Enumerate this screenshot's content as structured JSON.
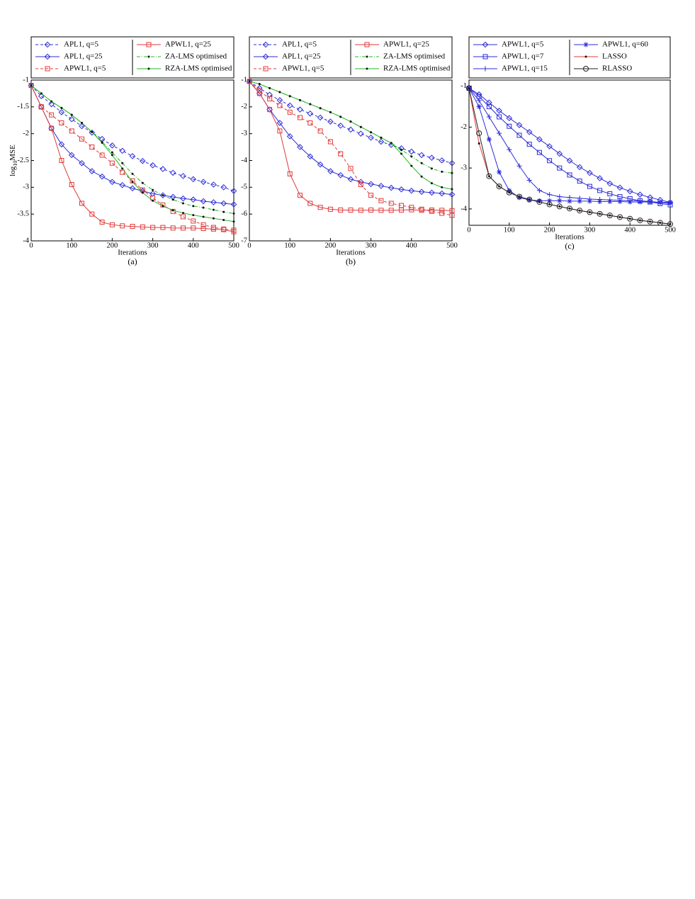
{
  "chart_data": [
    {
      "type": "line",
      "caption": "(a)",
      "x_label": "Iterations",
      "y_label": [
        "log",
        "10",
        "MSE"
      ],
      "x": [
        0,
        25,
        50,
        75,
        100,
        125,
        150,
        175,
        200,
        225,
        250,
        275,
        300,
        325,
        350,
        375,
        400,
        425,
        450,
        475,
        500
      ],
      "xlim": [
        0,
        500
      ],
      "xticks": [
        0,
        100,
        200,
        300,
        400,
        500
      ],
      "ylim": [
        -4,
        -1
      ],
      "yticks": [
        -1,
        -1.5,
        -2,
        -2.5,
        -3,
        -3.5,
        -4
      ],
      "series": [
        {
          "name": "APL1, q=5",
          "color": "#2b2bd9",
          "line_style": "dashed",
          "marker": "diamond",
          "values": [
            -1.1,
            -1.3,
            -1.45,
            -1.6,
            -1.73,
            -1.86,
            -1.98,
            -2.1,
            -2.22,
            -2.32,
            -2.42,
            -2.51,
            -2.59,
            -2.66,
            -2.73,
            -2.79,
            -2.85,
            -2.9,
            -2.95,
            -3.0,
            -3.07
          ]
        },
        {
          "name": "APL1, q=25",
          "color": "#2b2bd9",
          "line_style": "solid",
          "marker": "diamond",
          "values": [
            -1.1,
            -1.5,
            -1.9,
            -2.2,
            -2.4,
            -2.55,
            -2.7,
            -2.8,
            -2.9,
            -2.96,
            -3.02,
            -3.07,
            -3.12,
            -3.15,
            -3.18,
            -3.21,
            -3.23,
            -3.26,
            -3.28,
            -3.3,
            -3.32
          ]
        },
        {
          "name": "APWL1, q=5",
          "color": "#e03a3a",
          "line_style": "dashed",
          "marker": "square",
          "values": [
            -1.1,
            -1.5,
            -1.65,
            -1.8,
            -1.95,
            -2.1,
            -2.25,
            -2.4,
            -2.55,
            -2.72,
            -2.88,
            -3.05,
            -3.2,
            -3.33,
            -3.45,
            -3.55,
            -3.63,
            -3.7,
            -3.75,
            -3.78,
            -3.8
          ]
        },
        {
          "name": "APWL1, q=25",
          "color": "#e03a3a",
          "line_style": "solid",
          "marker": "square",
          "values": [
            -1.1,
            -1.5,
            -1.9,
            -2.5,
            -2.95,
            -3.3,
            -3.5,
            -3.65,
            -3.7,
            -3.72,
            -3.73,
            -3.74,
            -3.75,
            -3.75,
            -3.76,
            -3.76,
            -3.76,
            -3.77,
            -3.78,
            -3.79,
            -3.83
          ]
        },
        {
          "name": "ZA-LMS optimised",
          "color": "#22b822",
          "line_style": "dashdot",
          "marker": "dot",
          "values": [
            -1.1,
            -1.25,
            -1.4,
            -1.52,
            -1.65,
            -1.8,
            -1.97,
            -2.15,
            -2.35,
            -2.55,
            -2.75,
            -2.92,
            -3.05,
            -3.15,
            -3.23,
            -3.3,
            -3.35,
            -3.38,
            -3.42,
            -3.46,
            -3.49
          ]
        },
        {
          "name": "RZA-LMS optimised",
          "color": "#22b822",
          "line_style": "solid",
          "marker": "dot",
          "values": [
            -1.1,
            -1.25,
            -1.4,
            -1.52,
            -1.65,
            -1.8,
            -1.97,
            -2.17,
            -2.4,
            -2.65,
            -2.9,
            -3.1,
            -3.25,
            -3.35,
            -3.43,
            -3.48,
            -3.52,
            -3.55,
            -3.58,
            -3.61,
            -3.64
          ]
        }
      ]
    },
    {
      "type": "line",
      "caption": "(b)",
      "x_label": "Iterations",
      "x": [
        0,
        25,
        50,
        75,
        100,
        125,
        150,
        175,
        200,
        225,
        250,
        275,
        300,
        325,
        350,
        375,
        400,
        425,
        450,
        475,
        500
      ],
      "xlim": [
        0,
        500
      ],
      "xticks": [
        0,
        100,
        200,
        300,
        400,
        500
      ],
      "ylim": [
        -7,
        -1
      ],
      "yticks": [
        -1,
        -2,
        -3,
        -4,
        -5,
        -6,
        -7
      ],
      "series": [
        {
          "name": "APL1, q=5",
          "color": "#2b2bd9",
          "line_style": "dashed",
          "marker": "diamond",
          "values": [
            -1.05,
            -1.3,
            -1.55,
            -1.75,
            -1.95,
            -2.1,
            -2.25,
            -2.4,
            -2.55,
            -2.7,
            -2.85,
            -3.0,
            -3.15,
            -3.3,
            -3.42,
            -3.55,
            -3.67,
            -3.8,
            -3.9,
            -4.0,
            -4.1
          ]
        },
        {
          "name": "APL1, q=25",
          "color": "#2b2bd9",
          "line_style": "solid",
          "marker": "diamond",
          "values": [
            -1.05,
            -1.5,
            -2.1,
            -2.6,
            -3.1,
            -3.5,
            -3.85,
            -4.15,
            -4.4,
            -4.55,
            -4.7,
            -4.8,
            -4.88,
            -4.95,
            -5.02,
            -5.08,
            -5.13,
            -5.17,
            -5.2,
            -5.23,
            -5.27
          ]
        },
        {
          "name": "APWL1, q=5",
          "color": "#e03a3a",
          "line_style": "dashed",
          "marker": "square",
          "values": [
            -1.05,
            -1.4,
            -1.7,
            -1.95,
            -2.2,
            -2.4,
            -2.6,
            -2.9,
            -3.3,
            -3.75,
            -4.3,
            -4.9,
            -5.3,
            -5.5,
            -5.6,
            -5.68,
            -5.75,
            -5.82,
            -5.9,
            -5.97,
            -6.05
          ]
        },
        {
          "name": "APWL1, q=25",
          "color": "#e03a3a",
          "line_style": "solid",
          "marker": "square",
          "values": [
            -1.05,
            -1.5,
            -2.1,
            -2.9,
            -4.5,
            -5.3,
            -5.6,
            -5.75,
            -5.82,
            -5.85,
            -5.85,
            -5.86,
            -5.85,
            -5.86,
            -5.86,
            -5.85,
            -5.84,
            -5.86,
            -5.85,
            -5.86,
            -5.87
          ]
        },
        {
          "name": "ZA-LMS optimised",
          "color": "#22b822",
          "line_style": "dashdot",
          "marker": "dot",
          "values": [
            -1.05,
            -1.15,
            -1.3,
            -1.45,
            -1.6,
            -1.75,
            -1.9,
            -2.05,
            -2.2,
            -2.37,
            -2.55,
            -2.75,
            -2.95,
            -3.15,
            -3.35,
            -3.6,
            -3.85,
            -4.1,
            -4.3,
            -4.42,
            -4.47
          ]
        },
        {
          "name": "RZA-LMS optimised",
          "color": "#22b822",
          "line_style": "solid",
          "marker": "dot",
          "values": [
            -1.05,
            -1.15,
            -1.3,
            -1.45,
            -1.6,
            -1.75,
            -1.9,
            -2.05,
            -2.2,
            -2.37,
            -2.55,
            -2.75,
            -2.95,
            -3.15,
            -3.35,
            -3.75,
            -4.2,
            -4.6,
            -4.85,
            -5.0,
            -5.07
          ]
        }
      ]
    },
    {
      "type": "line",
      "caption": "(c)",
      "x_label": "Iterations",
      "x": [
        0,
        25,
        50,
        75,
        100,
        125,
        150,
        175,
        200,
        225,
        250,
        275,
        300,
        325,
        350,
        375,
        400,
        425,
        450,
        475,
        500
      ],
      "xlim": [
        0,
        500
      ],
      "xticks": [
        0,
        100,
        200,
        300,
        400,
        500
      ],
      "ylim": [
        -4.4,
        -0.85
      ],
      "yticks": [
        -1,
        -2,
        -3,
        -4
      ],
      "series": [
        {
          "name": "APWL1, q=5",
          "color": "#2b2bd9",
          "line_style": "solid",
          "marker": "diamond",
          "values": [
            -1.05,
            -1.2,
            -1.4,
            -1.6,
            -1.78,
            -1.95,
            -2.12,
            -2.3,
            -2.47,
            -2.65,
            -2.82,
            -2.98,
            -3.12,
            -3.25,
            -3.38,
            -3.48,
            -3.57,
            -3.65,
            -3.72,
            -3.78,
            -3.84
          ]
        },
        {
          "name": "APWL1, q=7",
          "color": "#2b2bd9",
          "line_style": "solid",
          "marker": "square",
          "values": [
            -1.05,
            -1.25,
            -1.5,
            -1.75,
            -1.98,
            -2.2,
            -2.42,
            -2.62,
            -2.82,
            -3.0,
            -3.17,
            -3.32,
            -3.45,
            -3.55,
            -3.63,
            -3.7,
            -3.75,
            -3.8,
            -3.83,
            -3.87,
            -3.9
          ]
        },
        {
          "name": "APWL1, q=15",
          "color": "#2b2bd9",
          "line_style": "solid",
          "marker": "plus",
          "values": [
            -1.05,
            -1.35,
            -1.75,
            -2.15,
            -2.55,
            -2.95,
            -3.3,
            -3.55,
            -3.65,
            -3.7,
            -3.72,
            -3.74,
            -3.76,
            -3.77,
            -3.78,
            -3.79,
            -3.8,
            -3.8,
            -3.82,
            -3.84,
            -3.87
          ]
        },
        {
          "name": "APWL1, q=60",
          "color": "#2b2bd9",
          "line_style": "solid",
          "marker": "asterisk",
          "values": [
            -1.05,
            -1.5,
            -2.3,
            -3.1,
            -3.55,
            -3.72,
            -3.78,
            -3.8,
            -3.8,
            -3.8,
            -3.81,
            -3.81,
            -3.81,
            -3.82,
            -3.82,
            -3.82,
            -3.83,
            -3.83,
            -3.83,
            -3.84,
            -3.84
          ]
        },
        {
          "name": "LASSO",
          "color": "#e03a3a",
          "line_style": "solid",
          "marker": "dot",
          "values": [
            -1.05,
            -2.4,
            -3.2,
            -3.45,
            -3.6,
            -3.7,
            -3.77,
            -3.83,
            -3.89,
            -3.94,
            -3.99,
            -4.04,
            -4.08,
            -4.12,
            -4.16,
            -4.2,
            -4.24,
            -4.28,
            -4.31,
            -4.34,
            -4.37
          ]
        },
        {
          "name": "RLASSO",
          "color": "#222222",
          "line_style": "solid",
          "marker": "circle",
          "values": [
            -1.05,
            -2.15,
            -3.2,
            -3.45,
            -3.6,
            -3.7,
            -3.77,
            -3.83,
            -3.89,
            -3.94,
            -3.99,
            -4.04,
            -4.08,
            -4.12,
            -4.16,
            -4.2,
            -4.24,
            -4.28,
            -4.31,
            -4.34,
            -4.37
          ]
        }
      ]
    }
  ]
}
